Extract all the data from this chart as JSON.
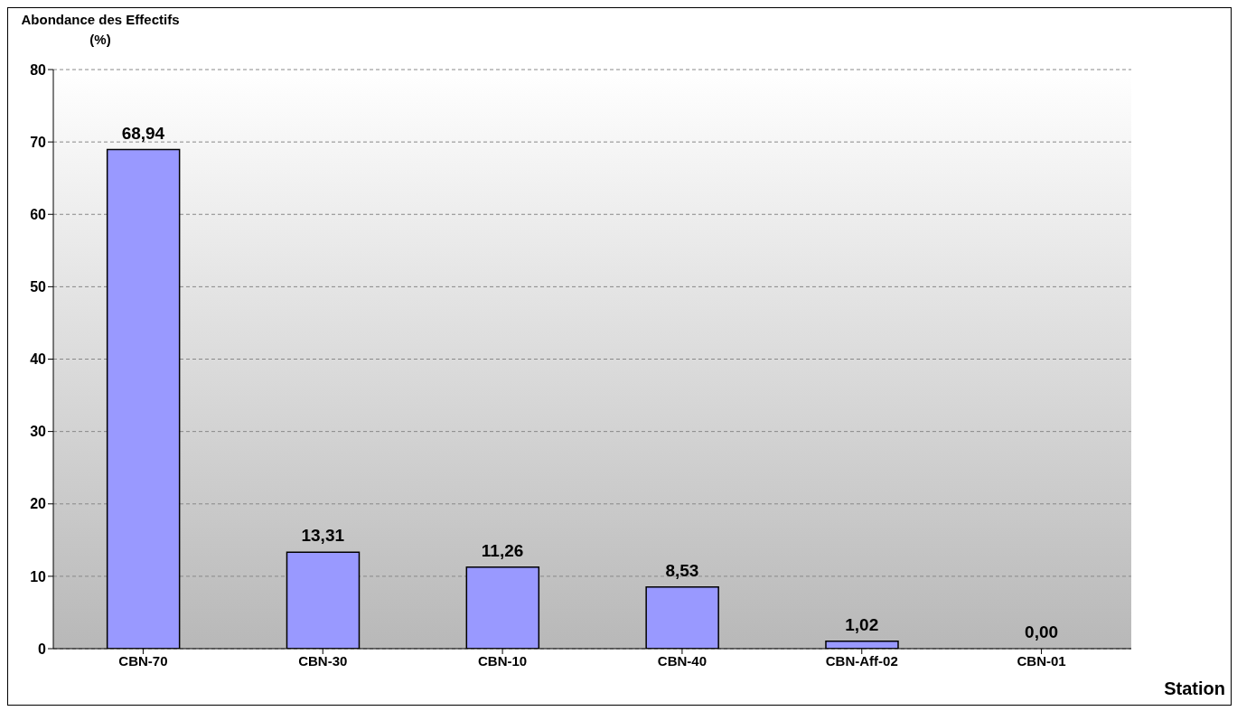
{
  "chart_data": {
    "type": "bar",
    "ylabel": "Abondance des Effectifs (%)",
    "xlabel": "Station",
    "categories": [
      "CBN-70",
      "CBN-30",
      "CBN-10",
      "CBN-40",
      "CBN-Aff-02",
      "CBN-01"
    ],
    "values": [
      68.94,
      13.31,
      11.26,
      8.53,
      1.02,
      0
    ],
    "value_labels": [
      "68,94",
      "13,31",
      "11,26",
      "8,53",
      "1,02",
      "0,00"
    ],
    "color": "#9999ff",
    "ylim": [
      0,
      80
    ],
    "yticks": [
      0,
      10,
      20,
      30,
      40,
      50,
      60,
      70,
      80
    ],
    "grid": "y"
  }
}
